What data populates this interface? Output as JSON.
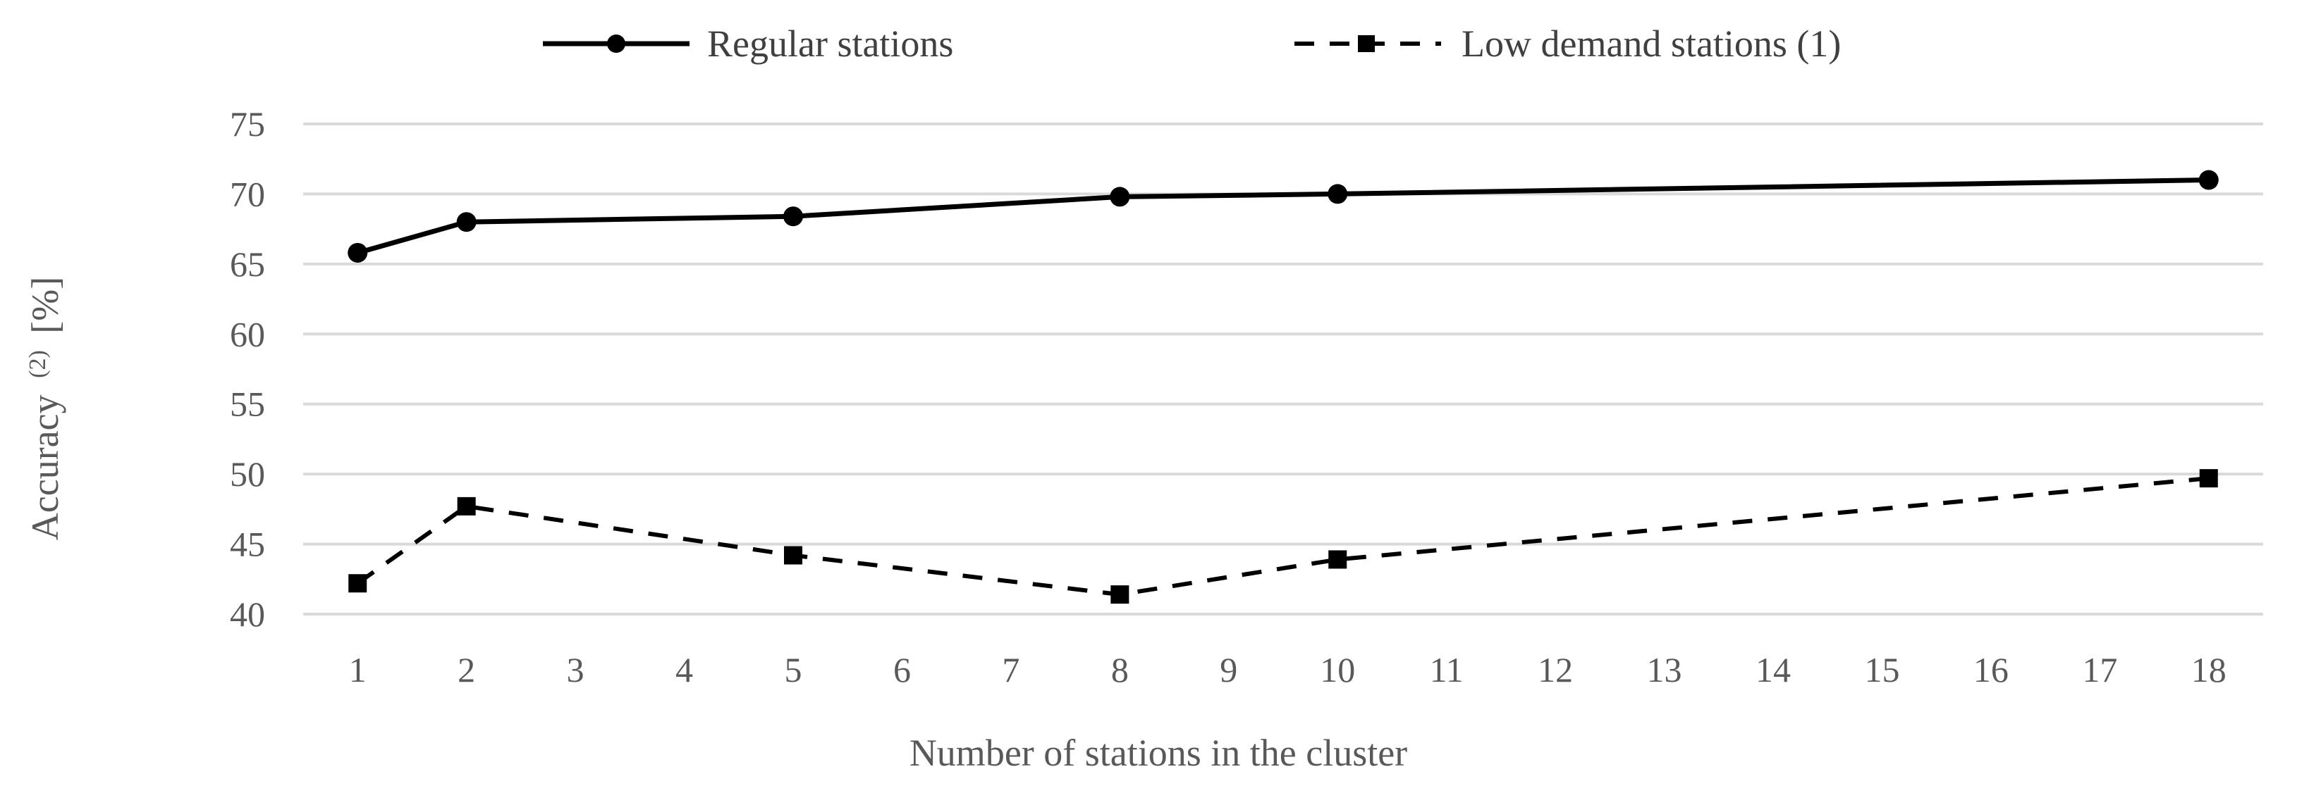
{
  "chart_data": {
    "type": "line",
    "xlabel": "Number of stations in the cluster",
    "ylabel_main": "Accuracy",
    "ylabel_sup": "(2)",
    "ylabel_unit": "[%]",
    "ylim": [
      40,
      75
    ],
    "ytick_step": 5,
    "categories": [
      "1",
      "2",
      "3",
      "4",
      "5",
      "6",
      "7",
      "8",
      "9",
      "10",
      "11",
      "12",
      "13",
      "14",
      "15",
      "16",
      "17",
      "18"
    ],
    "grid": "horizontal",
    "legend": "top-center",
    "series": [
      {
        "name": "Regular stations",
        "marker": "circle",
        "line_style": "solid",
        "color": "#000000",
        "points": [
          {
            "x": 1,
            "y": 65.8
          },
          {
            "x": 2,
            "y": 68.0
          },
          {
            "x": 5,
            "y": 68.4
          },
          {
            "x": 8,
            "y": 69.8
          },
          {
            "x": 10,
            "y": 70.0
          },
          {
            "x": 18,
            "y": 71.0
          }
        ]
      },
      {
        "name": "Low demand stations (1)",
        "marker": "square",
        "line_style": "dashed",
        "color": "#000000",
        "points": [
          {
            "x": 1,
            "y": 42.2
          },
          {
            "x": 2,
            "y": 47.7
          },
          {
            "x": 5,
            "y": 44.2
          },
          {
            "x": 8,
            "y": 41.4
          },
          {
            "x": 10,
            "y": 43.9
          },
          {
            "x": 18,
            "y": 49.7
          }
        ]
      }
    ]
  }
}
